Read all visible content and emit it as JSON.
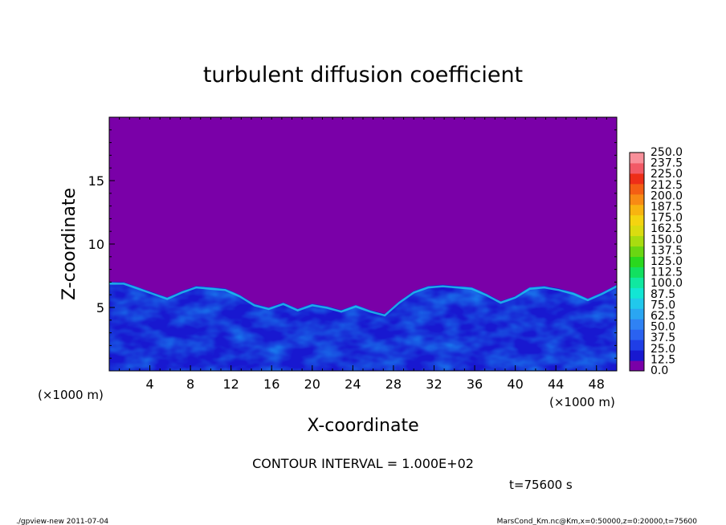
{
  "chart_data": {
    "type": "heatmap",
    "title": "turbulent diffusion coefficient",
    "xlabel": "X-coordinate",
    "ylabel": "Z-coordinate",
    "x_unit": "(×1000 m)",
    "y_unit": "(×1000 m)",
    "xlim": [
      0,
      50
    ],
    "ylim": [
      0,
      20
    ],
    "x_ticks": [
      "4",
      "8",
      "12",
      "16",
      "20",
      "24",
      "28",
      "32",
      "36",
      "40",
      "44",
      "48"
    ],
    "y_ticks": [
      "5",
      "10",
      "15"
    ],
    "colorbar": {
      "levels": [
        "0.0",
        "12.5",
        "25.0",
        "37.5",
        "50.0",
        "62.5",
        "75.0",
        "87.5",
        "100.0",
        "112.5",
        "125.0",
        "137.5",
        "150.0",
        "162.5",
        "175.0",
        "187.5",
        "200.0",
        "212.5",
        "225.0",
        "237.5",
        "250.0"
      ],
      "colors": [
        "#7a00a8",
        "#1818d0",
        "#1f3ee6",
        "#2a62f0",
        "#2f82f4",
        "#2aa6f2",
        "#21c8ec",
        "#12e6d4",
        "#10e8a0",
        "#12e060",
        "#2ad81e",
        "#6ad612",
        "#a8dc10",
        "#dadc10",
        "#f4d410",
        "#f8b410",
        "#f88a14",
        "#f45e14",
        "#ee2e18",
        "#f25a66",
        "#f8909a"
      ]
    },
    "background_value_color": "#7a00a8",
    "turbulent_layer_top_km": [
      7.0,
      7.0,
      6.6,
      6.2,
      5.8,
      6.3,
      6.7,
      6.6,
      6.5,
      6.0,
      5.3,
      5.0,
      5.4,
      4.9,
      5.3,
      5.1,
      4.8,
      5.2,
      4.8,
      4.5,
      5.5,
      6.3,
      6.7,
      6.8,
      6.7,
      6.6,
      6.1,
      5.5,
      5.9,
      6.6,
      6.7,
      6.5,
      6.2,
      5.7,
      6.2,
      6.8
    ]
  },
  "contour_interval": "CONTOUR INTERVAL = 1.000E+02",
  "time_label": "t=75600 s",
  "footer_left": "./gpview-new   2011-07-04",
  "footer_right": "MarsCond_Km.nc@Km,x=0:50000,z=0:20000,t=75600"
}
